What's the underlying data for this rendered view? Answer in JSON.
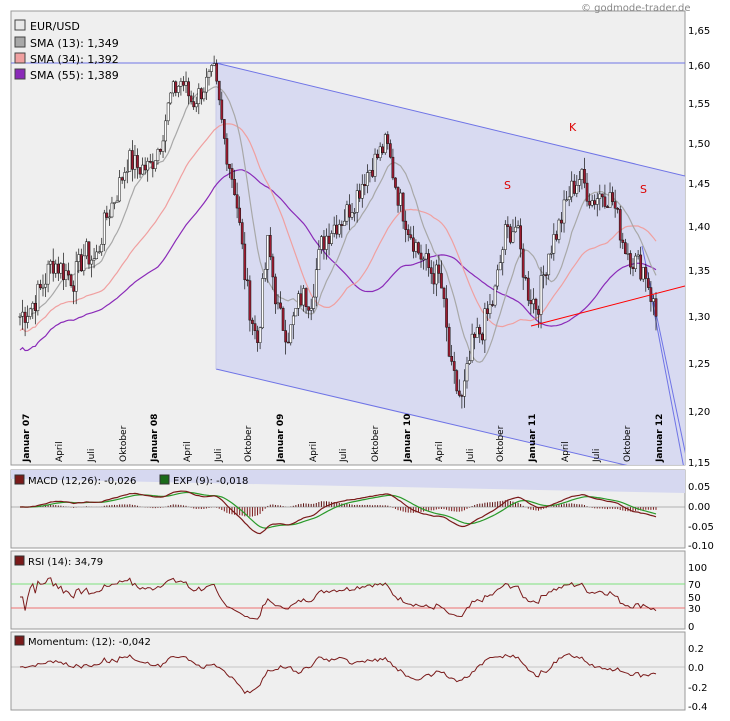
{
  "copyright": "© godmode-trader.de",
  "colors": {
    "background": "#efefef",
    "channel_fill": "#d6d8f0",
    "channel_line": "#6f74e6",
    "candle_up": "#ffffff",
    "candle_down": "#9b1b30",
    "sma13": "#a8a8a8",
    "sma34": "#f0a0a0",
    "sma55": "#8a2ab8",
    "neckline": "#ff0000",
    "macd": "#7a1a1a",
    "signal": "#2a9a2a",
    "rsi": "#7a1a1a",
    "momentum": "#7a1a1a"
  },
  "legend": [
    {
      "label": "EUR/USD",
      "color": "#e8e8e8"
    },
    {
      "label": "SMA (13): 1,349",
      "color": "#a8a8a8"
    },
    {
      "label": "SMA (34): 1,392",
      "color": "#f0a0a0"
    },
    {
      "label": "SMA (55): 1,389",
      "color": "#8a2ab8"
    }
  ],
  "macd_legend": [
    {
      "label": "MACD (12,26): -0,026",
      "color": "#7a1a1a"
    },
    {
      "label": "EXP (9): -0,018",
      "color": "#1a6a1a"
    }
  ],
  "rsi_legend": {
    "label": "RSI (14): 34,79",
    "color": "#7a1a1a"
  },
  "momentum_legend": {
    "label": "Momentum: (12): -0,042",
    "color": "#7a1a1a"
  },
  "pattern_labels": [
    "S",
    "K",
    "S"
  ],
  "chart_data": [
    {
      "type": "candlestick",
      "series_name": "EUR/USD",
      "x_unit": "month",
      "x_range": [
        "2007-01",
        "2011-12"
      ],
      "ylim": [
        1.15,
        1.65
      ],
      "y_ticks": [
        "1,15",
        "1,20",
        "1,25",
        "1,30",
        "1,35",
        "1,40",
        "1,45",
        "1,50",
        "1,55",
        "1,60",
        "1,65"
      ],
      "x_tick_labels": [
        {
          "label": "Januar 07",
          "bold": true
        },
        {
          "label": "April",
          "bold": false
        },
        {
          "label": "Juli",
          "bold": false
        },
        {
          "label": "Oktober",
          "bold": false
        },
        {
          "label": "Januar 08",
          "bold": true
        },
        {
          "label": "April",
          "bold": false
        },
        {
          "label": "Juli",
          "bold": false
        },
        {
          "label": "Oktober",
          "bold": false
        },
        {
          "label": "Januar 09",
          "bold": true
        },
        {
          "label": "April",
          "bold": false
        },
        {
          "label": "Juli",
          "bold": false
        },
        {
          "label": "Oktober",
          "bold": false
        },
        {
          "label": "Januar 10",
          "bold": true
        },
        {
          "label": "April",
          "bold": false
        },
        {
          "label": "Juli",
          "bold": false
        },
        {
          "label": "Oktober",
          "bold": false
        },
        {
          "label": "Januar 11",
          "bold": true
        },
        {
          "label": "April",
          "bold": false
        },
        {
          "label": "Juli",
          "bold": false
        },
        {
          "label": "Oktober",
          "bold": false
        },
        {
          "label": "Januar 12",
          "bold": true
        }
      ],
      "close_path": [
        [
          "2007-01",
          1.3
        ],
        [
          "2007-02",
          1.31
        ],
        [
          "2007-03",
          1.33
        ],
        [
          "2007-04",
          1.36
        ],
        [
          "2007-05",
          1.35
        ],
        [
          "2007-06",
          1.34
        ],
        [
          "2007-07",
          1.37
        ],
        [
          "2007-08",
          1.36
        ],
        [
          "2007-09",
          1.41
        ],
        [
          "2007-10",
          1.44
        ],
        [
          "2007-11",
          1.48
        ],
        [
          "2007-12",
          1.47
        ],
        [
          "2008-01",
          1.47
        ],
        [
          "2008-02",
          1.5
        ],
        [
          "2008-03",
          1.56
        ],
        [
          "2008-04",
          1.58
        ],
        [
          "2008-05",
          1.55
        ],
        [
          "2008-06",
          1.57
        ],
        [
          "2008-07",
          1.59
        ],
        [
          "2008-08",
          1.5
        ],
        [
          "2008-09",
          1.44
        ],
        [
          "2008-10",
          1.33
        ],
        [
          "2008-11",
          1.27
        ],
        [
          "2008-12",
          1.38
        ],
        [
          "2009-01",
          1.3
        ],
        [
          "2009-02",
          1.28
        ],
        [
          "2009-03",
          1.32
        ],
        [
          "2009-04",
          1.32
        ],
        [
          "2009-05",
          1.38
        ],
        [
          "2009-06",
          1.4
        ],
        [
          "2009-07",
          1.41
        ],
        [
          "2009-08",
          1.43
        ],
        [
          "2009-09",
          1.46
        ],
        [
          "2009-10",
          1.48
        ],
        [
          "2009-11",
          1.5
        ],
        [
          "2009-12",
          1.44
        ],
        [
          "2010-01",
          1.4
        ],
        [
          "2010-02",
          1.37
        ],
        [
          "2010-03",
          1.35
        ],
        [
          "2010-04",
          1.34
        ],
        [
          "2010-05",
          1.24
        ],
        [
          "2010-06",
          1.21
        ],
        [
          "2010-07",
          1.27
        ],
        [
          "2010-08",
          1.29
        ],
        [
          "2010-09",
          1.32
        ],
        [
          "2010-10",
          1.39
        ],
        [
          "2010-11",
          1.4
        ],
        [
          "2010-12",
          1.33
        ],
        [
          "2011-01",
          1.31
        ],
        [
          "2011-02",
          1.37
        ],
        [
          "2011-03",
          1.4
        ],
        [
          "2011-04",
          1.44
        ],
        [
          "2011-05",
          1.46
        ],
        [
          "2011-06",
          1.43
        ],
        [
          "2011-07",
          1.44
        ],
        [
          "2011-08",
          1.43
        ],
        [
          "2011-09",
          1.38
        ],
        [
          "2011-10",
          1.36
        ],
        [
          "2011-11",
          1.35
        ],
        [
          "2011-12",
          1.3
        ]
      ]
    },
    {
      "type": "line",
      "series": [
        {
          "name": "MACD (12,26)",
          "last": -0.026
        },
        {
          "name": "EXP (9)",
          "last": -0.018
        }
      ],
      "ylim": [
        -0.1,
        0.05
      ],
      "y_ticks": [
        "0.05",
        "0.00",
        "-0.05",
        "-0.10"
      ]
    },
    {
      "type": "line",
      "series": [
        {
          "name": "RSI (14)",
          "last": 34.79
        }
      ],
      "ylim": [
        0,
        100
      ],
      "y_ticks": [
        "100",
        "70",
        "50",
        "30",
        "0"
      ],
      "bands": [
        30,
        70
      ]
    },
    {
      "type": "line",
      "series": [
        {
          "name": "Momentum: (12)",
          "last": -0.042
        }
      ],
      "ylim": [
        -0.4,
        0.2
      ],
      "y_ticks": [
        "0.2",
        "0.0",
        "-0.2",
        "-0.4"
      ]
    }
  ]
}
